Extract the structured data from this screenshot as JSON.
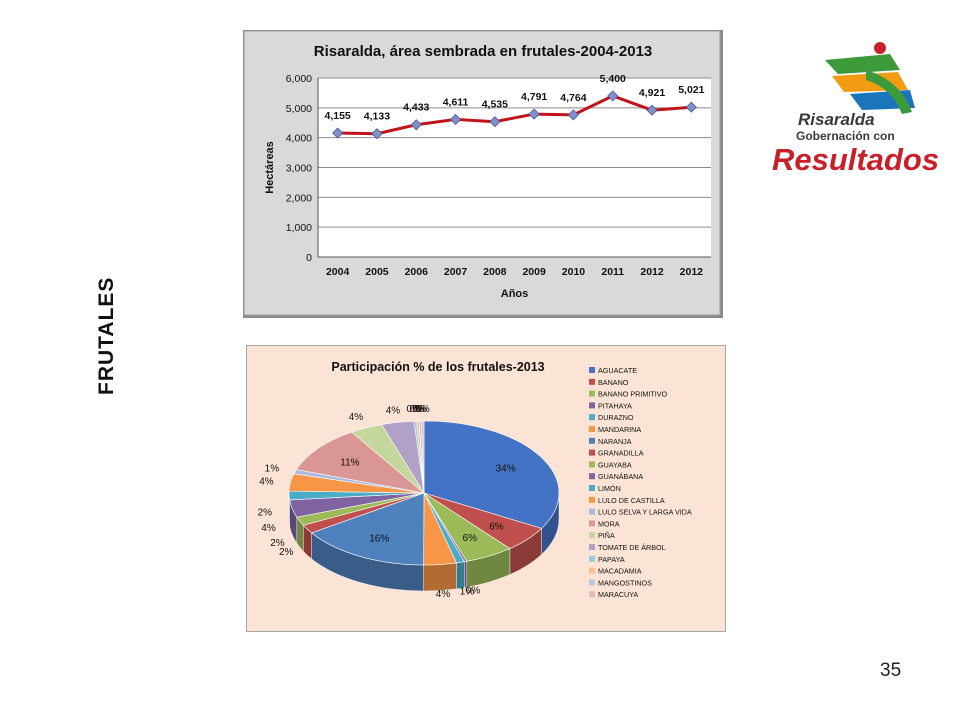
{
  "side_title": "FRUTALES",
  "page_number": "35",
  "logo": {
    "line1": "Risaralda",
    "line2": "Gobernación con",
    "line3": "Resultados",
    "colors": {
      "red": "#c8202a",
      "green": "#3c9a3a",
      "blue": "#1b75bb",
      "orange": "#f39c12",
      "dark": "#3a3a3a"
    }
  },
  "chart_data": [
    {
      "type": "line",
      "title": "Risaralda, área sembrada en frutales-2004-2013",
      "xlabel": "Años",
      "ylabel": "Hectáreas",
      "categories": [
        "2004",
        "2005",
        "2006",
        "2007",
        "2008",
        "2009",
        "2010",
        "2011",
        "2012",
        "2012"
      ],
      "values": [
        4155,
        4133,
        4433,
        4611,
        4535,
        4791,
        4764,
        5400,
        4921,
        5021
      ],
      "data_labels": [
        "4,155",
        "4,133",
        "4,433",
        "4,611",
        "4,535",
        "4,791",
        "4,764",
        "5,400",
        "4,921",
        "5,021"
      ],
      "ylim": [
        0,
        6000
      ],
      "yticks": [
        0,
        1000,
        2000,
        3000,
        4000,
        5000,
        6000
      ],
      "ytick_labels": [
        "0",
        "1,000",
        "2,000",
        "3,000",
        "4,000",
        "5,000",
        "6,000"
      ],
      "grid": true,
      "colors": {
        "line": "#c0141a",
        "marker": "#7f8fc9",
        "background": "#d9d9d9"
      }
    },
    {
      "type": "pie",
      "title": "Participación % de los frutales-2013",
      "legend_position": "right",
      "slices": [
        {
          "label": "AGUACATE",
          "value": 34,
          "display": "34%",
          "color": "#4472c4"
        },
        {
          "label": "BANANO",
          "value": 6,
          "display": "6%",
          "color": "#c0504d"
        },
        {
          "label": "BANANO PRIMITIVO",
          "value": 6,
          "display": "6%",
          "color": "#9bbb59"
        },
        {
          "label": "PITAHAYA",
          "value": 0.3,
          "display": "0%",
          "color": "#8064a2"
        },
        {
          "label": "DURAZNO",
          "value": 1,
          "display": "1%",
          "color": "#4bacc6"
        },
        {
          "label": "MANDARINA",
          "value": 4,
          "display": "4%",
          "color": "#f79646"
        },
        {
          "label": "NARANJA",
          "value": 16,
          "display": "16%",
          "color": "#4f81bd"
        },
        {
          "label": "GRANADILLA",
          "value": 2,
          "display": "2%",
          "color": "#c0504d"
        },
        {
          "label": "GUAYABA",
          "value": 2,
          "display": "2%",
          "color": "#9bbb59"
        },
        {
          "label": "GUANÁBANA",
          "value": 4,
          "display": "4%",
          "color": "#8064a2"
        },
        {
          "label": "LIMÓN",
          "value": 2,
          "display": "2%",
          "color": "#4bacc6"
        },
        {
          "label": "LULO DE CASTILLA",
          "value": 4,
          "display": "4%",
          "color": "#f79646"
        },
        {
          "label": "LULO SELVA Y LARGA VIDA",
          "value": 1,
          "display": "1%",
          "color": "#aab9de"
        },
        {
          "label": "MORA",
          "value": 11,
          "display": "11%",
          "color": "#d99694"
        },
        {
          "label": "PIÑA",
          "value": 4,
          "display": "4%",
          "color": "#c3d69b"
        },
        {
          "label": "TOMATE DE ÁRBOL",
          "value": 4,
          "display": "4%",
          "color": "#b2a1c7"
        },
        {
          "label": "PAPAYA",
          "value": 0.3,
          "display": "0%",
          "color": "#93cddd"
        },
        {
          "label": "MACADAMIA",
          "value": 0.3,
          "display": "0%",
          "color": "#fac08f"
        },
        {
          "label": "MANGOSTINOS",
          "value": 0.3,
          "display": "0%",
          "color": "#b9c7e5"
        },
        {
          "label": "MARACUYA",
          "value": 0.3,
          "display": "0%",
          "color": "#e6b9b8"
        }
      ],
      "colors": {
        "background": "#fbe4d5"
      }
    }
  ]
}
